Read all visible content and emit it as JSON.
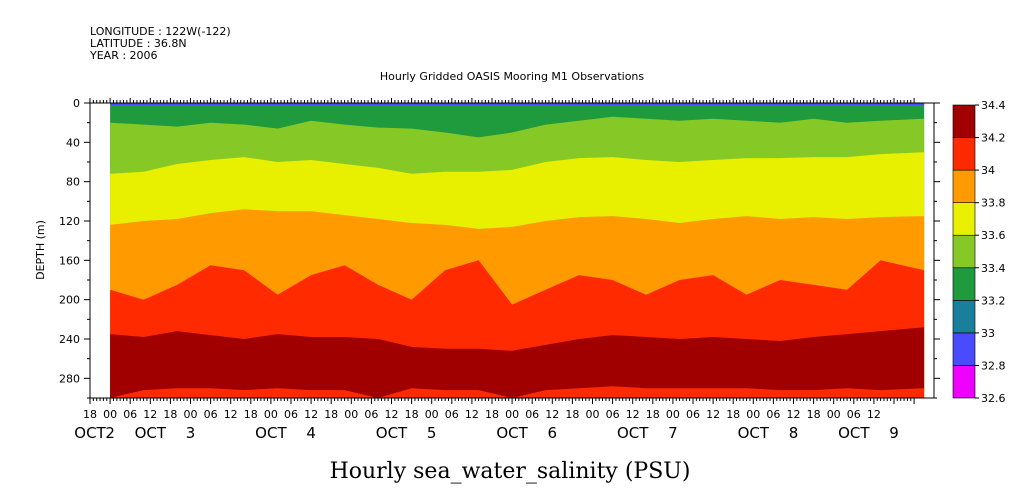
{
  "header": {
    "longitude": "LONGITUDE : 122W(-122)",
    "latitude": "LATITUDE : 36.8N",
    "year": "YEAR : 2006",
    "title": "Hourly Gridded OASIS Mooring M1 Observations"
  },
  "chart_data": {
    "type": "heatmap",
    "title": "Hourly Gridded OASIS Mooring M1 Observations",
    "xlabel": "Hourly sea_water_salinity (PSU)",
    "ylabel": "DEPTH (m)",
    "ylim": [
      0,
      300
    ],
    "y_reversed": true,
    "y_ticks": [
      0,
      40,
      80,
      120,
      160,
      200,
      240,
      280
    ],
    "x_range_hours": [
      -6,
      234
    ],
    "x_hour_ticks": [
      "18",
      "00",
      "06",
      "12",
      "18",
      "00",
      "06",
      "12",
      "18",
      "00",
      "06",
      "12",
      "18",
      "00",
      "06",
      "12",
      "18",
      "00",
      "06",
      "12",
      "18",
      "00",
      "06",
      "12",
      "18",
      "00",
      "06",
      "12",
      "18",
      "00",
      "06",
      "12",
      "18",
      "00",
      "06",
      "12",
      "18",
      "00",
      "06",
      "12"
    ],
    "x_day_labels": [
      {
        "hour": -6,
        "text": "OCT"
      },
      {
        "hour": 0,
        "text": "2"
      },
      {
        "hour": 12,
        "text": "OCT"
      },
      {
        "hour": 24,
        "text": "3"
      },
      {
        "hour": 48,
        "text": "OCT"
      },
      {
        "hour": 60,
        "text": "4"
      },
      {
        "hour": 84,
        "text": "OCT"
      },
      {
        "hour": 96,
        "text": "5"
      },
      {
        "hour": 120,
        "text": "OCT"
      },
      {
        "hour": 132,
        "text": "6"
      },
      {
        "hour": 156,
        "text": "OCT"
      },
      {
        "hour": 168,
        "text": "7"
      },
      {
        "hour": 192,
        "text": "OCT"
      },
      {
        "hour": 204,
        "text": "8"
      },
      {
        "hour": 222,
        "text": "OCT"
      },
      {
        "hour": 234,
        "text": "9"
      }
    ],
    "data_hours": [
      0,
      243
    ],
    "colorbar": {
      "levels": [
        32.6,
        32.8,
        33,
        33.2,
        33.4,
        33.6,
        33.8,
        34,
        34.2,
        34.4
      ],
      "labels": [
        "32.6",
        "32.8",
        "33",
        "33.2",
        "33.4",
        "33.6",
        "33.8",
        "34",
        "34.2",
        "34.4"
      ],
      "colors": [
        "#ee00ff",
        "#4a4aff",
        "#1a7f9a",
        "#1f9b3d",
        "#86c926",
        "#e8f000",
        "#ff9a00",
        "#ff2a00",
        "#a00000"
      ]
    },
    "interface_depths": {
      "hours": [
        0,
        10,
        20,
        30,
        40,
        50,
        60,
        70,
        80,
        90,
        100,
        110,
        120,
        130,
        140,
        150,
        160,
        170,
        180,
        190,
        200,
        210,
        220,
        230,
        243
      ],
      "b_33_2": [
        2,
        2,
        2,
        2,
        2,
        2,
        2,
        2,
        2,
        2,
        2,
        2,
        4,
        2,
        2,
        2,
        2,
        2,
        2,
        2,
        2,
        2,
        2,
        2,
        2
      ],
      "b_33_4": [
        20,
        22,
        24,
        20,
        22,
        26,
        18,
        22,
        25,
        26,
        30,
        35,
        30,
        22,
        18,
        14,
        16,
        18,
        16,
        18,
        20,
        16,
        20,
        18,
        16
      ],
      "b_33_6": [
        72,
        70,
        62,
        58,
        55,
        60,
        58,
        62,
        66,
        72,
        70,
        70,
        68,
        60,
        56,
        55,
        58,
        60,
        58,
        56,
        56,
        55,
        55,
        52,
        50
      ],
      "b_33_8": [
        124,
        120,
        118,
        112,
        108,
        110,
        110,
        114,
        118,
        122,
        124,
        128,
        126,
        120,
        116,
        115,
        118,
        122,
        118,
        115,
        118,
        116,
        118,
        116,
        115
      ],
      "b_34_0": [
        190,
        200,
        185,
        165,
        170,
        195,
        175,
        165,
        185,
        200,
        170,
        160,
        205,
        190,
        175,
        180,
        195,
        180,
        175,
        195,
        180,
        185,
        190,
        160,
        170
      ],
      "b_34_2": [
        235,
        238,
        232,
        236,
        240,
        235,
        238,
        238,
        240,
        248,
        250,
        250,
        252,
        246,
        240,
        236,
        238,
        240,
        238,
        240,
        242,
        238,
        235,
        232,
        228
      ],
      "b_deep": [
        300,
        292,
        290,
        290,
        292,
        290,
        292,
        292,
        300,
        290,
        292,
        292,
        300,
        292,
        290,
        288,
        290,
        290,
        290,
        290,
        292,
        292,
        290,
        292,
        290
      ]
    }
  }
}
